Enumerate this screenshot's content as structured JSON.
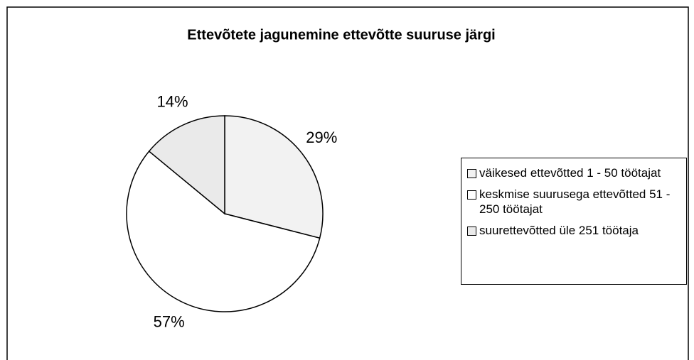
{
  "chart_data": {
    "type": "pie",
    "title": "Ettevõtete jagunemine ettevõtte suuruse järgi",
    "categories": [
      "väikesed ettevõtted 1 - 50 töötajat",
      "keskmise suurusega ettevõtted 51 - 250 töötajat",
      "suurettevõtted üle 251 töötaja"
    ],
    "values": [
      29,
      57,
      14
    ],
    "value_labels": [
      "29%",
      "57%",
      "14%"
    ],
    "colors": [
      "#f2f2f2",
      "#ffffff",
      "#eaeaea"
    ],
    "legend": "right"
  }
}
